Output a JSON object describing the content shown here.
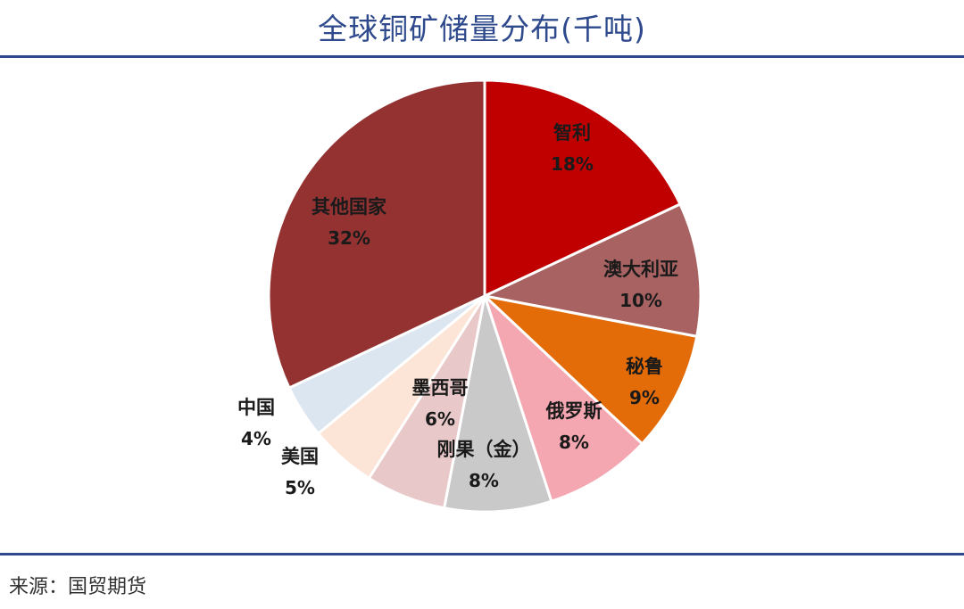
{
  "title": "全球铜矿储量分布(千吨)",
  "source": "来源：国贸期货",
  "colors": {
    "title": "#2e4a8c",
    "rule": "#2e4a8c"
  },
  "chart_data": {
    "type": "pie",
    "title": "全球铜矿储量分布(千吨)",
    "start_angle_deg": 0,
    "direction": "clockwise",
    "slices": [
      {
        "label": "智利",
        "value": 18,
        "value_label": "18%",
        "color": "#c00000"
      },
      {
        "label": "澳大利亚",
        "value": 10,
        "value_label": "10%",
        "color": "#a86262"
      },
      {
        "label": "秘鲁",
        "value": 9,
        "value_label": "9%",
        "color": "#e36c09"
      },
      {
        "label": "俄罗斯",
        "value": 8,
        "value_label": "8%",
        "color": "#f4a7b0"
      },
      {
        "label": "刚果（金）",
        "value": 8,
        "value_label": "8%",
        "color": "#c9c9c9"
      },
      {
        "label": "墨西哥",
        "value": 6,
        "value_label": "6%",
        "color": "#e8c8c8"
      },
      {
        "label": "美国",
        "value": 5,
        "value_label": "5%",
        "color": "#fce4d6"
      },
      {
        "label": "中国",
        "value": 4,
        "value_label": "4%",
        "color": "#dce6f1"
      },
      {
        "label": "其他国家",
        "value": 32,
        "value_label": "32%",
        "color": "#943232"
      }
    ]
  }
}
